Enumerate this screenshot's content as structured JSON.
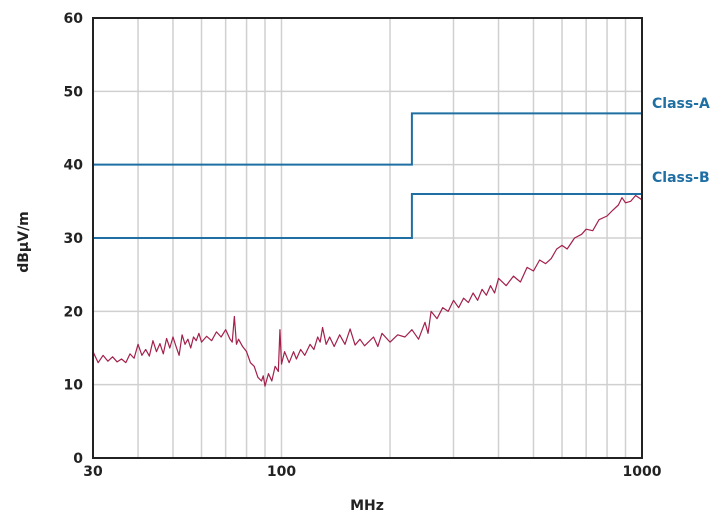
{
  "chart_data": {
    "type": "line",
    "title": "",
    "xlabel": "MHz",
    "ylabel": "dBµV/m",
    "xscale": "log",
    "xlim": [
      30,
      1000
    ],
    "ylim": [
      0,
      60
    ],
    "grid": true,
    "x_tick_labels": [
      "30",
      "100",
      "1000"
    ],
    "y_tick_labels": [
      "0",
      "10",
      "20",
      "30",
      "40",
      "50",
      "60"
    ],
    "y_ticks": [
      0,
      10,
      20,
      30,
      40,
      50,
      60
    ],
    "x_grid": [
      40,
      50,
      60,
      70,
      80,
      90,
      100,
      200,
      300,
      400,
      500,
      600,
      700,
      800,
      900
    ],
    "colors": {
      "limit": "#1f6fa3",
      "trace": "#a3204a",
      "grid": "#d0d0d0",
      "axis": "#222222"
    },
    "limits": [
      {
        "name": "Class-A",
        "x": [
          30,
          230,
          230,
          1000
        ],
        "y": [
          40,
          40,
          47,
          47
        ]
      },
      {
        "name": "Class-B",
        "x": [
          30,
          230,
          230,
          1000
        ],
        "y": [
          30,
          30,
          36,
          36
        ]
      }
    ],
    "series": [
      {
        "x": [
          30,
          31,
          32,
          33,
          34,
          35,
          36,
          37,
          38,
          39,
          40,
          41,
          42,
          43,
          44,
          45,
          46,
          47,
          48,
          49,
          50,
          51,
          52,
          53,
          54,
          55,
          56,
          57,
          58,
          59,
          60,
          62,
          64,
          66,
          68,
          70,
          72,
          73,
          74,
          75,
          76,
          78,
          80,
          82,
          84,
          86,
          88,
          89,
          90,
          92,
          94,
          96,
          98,
          99,
          100,
          102,
          105,
          108,
          110,
          113,
          116,
          120,
          123,
          126,
          128,
          130,
          133,
          136,
          140,
          145,
          150,
          155,
          160,
          165,
          170,
          180,
          185,
          190,
          200,
          210,
          220,
          230,
          240,
          250,
          255,
          260,
          270,
          280,
          290,
          300,
          310,
          320,
          330,
          340,
          350,
          360,
          370,
          380,
          390,
          400,
          420,
          440,
          460,
          480,
          500,
          520,
          540,
          560,
          580,
          600,
          620,
          650,
          680,
          700,
          730,
          760,
          800,
          830,
          860,
          880,
          900,
          930,
          960,
          1000
        ],
        "y": [
          14.5,
          13,
          14,
          13.2,
          13.8,
          13.1,
          13.5,
          13,
          14.2,
          13.6,
          15.5,
          14,
          14.8,
          13.9,
          16,
          14.5,
          15.6,
          14.2,
          16.3,
          15,
          16.5,
          15.2,
          14,
          16.8,
          15.5,
          16.2,
          15,
          16.5,
          16,
          17,
          15.8,
          16.6,
          16,
          17.2,
          16.5,
          17.5,
          16.2,
          15.8,
          19.3,
          15.5,
          16.2,
          15.2,
          14.5,
          13,
          12.5,
          11,
          10.5,
          11.2,
          9.8,
          11.5,
          10.5,
          12.5,
          11.8,
          17.5,
          12.8,
          14.5,
          13,
          14.5,
          13.5,
          14.8,
          14,
          15.5,
          14.8,
          16.5,
          15.8,
          17.8,
          15.5,
          16.5,
          15.2,
          16.8,
          15.5,
          17.6,
          15.4,
          16.2,
          15.3,
          16.5,
          15.2,
          17,
          15.8,
          16.8,
          16.5,
          17.5,
          16.2,
          18.5,
          17,
          20,
          19,
          20.5,
          20,
          21.5,
          20.5,
          21.8,
          21.2,
          22.5,
          21.5,
          23,
          22.2,
          23.5,
          22.5,
          24.5,
          23.5,
          24.8,
          24,
          26,
          25.5,
          27,
          26.5,
          27.2,
          28.5,
          29,
          28.5,
          30,
          30.5,
          31.2,
          31,
          32.5,
          33,
          33.8,
          34.5,
          35.5,
          34.8,
          35,
          35.8,
          35.2
        ]
      }
    ]
  }
}
